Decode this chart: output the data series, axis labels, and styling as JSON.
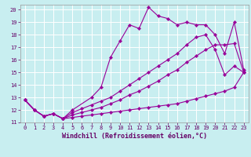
{
  "xlabel": "Windchill (Refroidissement éolien,°C)",
  "bg_color": "#c8eef0",
  "grid_color": "#c0dfe0",
  "line_color": "#990099",
  "xlim": [
    -0.5,
    23.5
  ],
  "ylim": [
    11,
    20.4
  ],
  "xticks": [
    0,
    1,
    2,
    3,
    4,
    5,
    6,
    7,
    8,
    9,
    10,
    11,
    12,
    13,
    14,
    15,
    16,
    17,
    18,
    19,
    20,
    21,
    22,
    23
  ],
  "yticks": [
    11,
    12,
    13,
    14,
    15,
    16,
    17,
    18,
    19,
    20
  ],
  "series": [
    {
      "x": [
        0,
        1,
        2,
        3,
        4,
        5,
        7,
        8,
        9,
        10,
        11,
        12,
        13,
        14,
        15,
        16,
        17,
        18,
        19,
        20,
        21,
        22,
        23
      ],
      "y": [
        12.8,
        12.0,
        11.5,
        11.7,
        11.3,
        12.0,
        13.0,
        13.8,
        16.2,
        17.5,
        18.8,
        18.5,
        20.2,
        19.5,
        19.3,
        18.8,
        19.0,
        18.8,
        18.8,
        18.0,
        16.5,
        19.0,
        15.2
      ]
    },
    {
      "x": [
        0,
        1,
        2,
        3,
        4,
        5,
        6,
        7,
        8,
        9,
        10,
        11,
        12,
        13,
        14,
        15,
        16,
        17,
        18,
        19,
        20,
        21,
        22,
        23
      ],
      "y": [
        12.8,
        12.0,
        11.5,
        11.7,
        11.3,
        11.8,
        12.1,
        12.4,
        12.7,
        13.0,
        13.5,
        14.0,
        14.5,
        15.0,
        15.5,
        16.0,
        16.5,
        17.2,
        17.8,
        18.0,
        16.8,
        14.8,
        15.5,
        15.0
      ]
    },
    {
      "x": [
        0,
        1,
        2,
        3,
        4,
        5,
        6,
        7,
        8,
        9,
        10,
        11,
        12,
        13,
        14,
        15,
        16,
        17,
        18,
        19,
        20,
        21,
        22,
        23
      ],
      "y": [
        12.8,
        12.0,
        11.5,
        11.7,
        11.3,
        11.6,
        11.8,
        12.0,
        12.2,
        12.5,
        12.8,
        13.2,
        13.5,
        13.9,
        14.3,
        14.8,
        15.2,
        15.8,
        16.3,
        16.8,
        17.2,
        17.2,
        17.3,
        15.0
      ]
    },
    {
      "x": [
        0,
        1,
        2,
        3,
        4,
        5,
        6,
        7,
        8,
        9,
        10,
        11,
        12,
        13,
        14,
        15,
        16,
        17,
        18,
        19,
        20,
        21,
        22,
        23
      ],
      "y": [
        12.8,
        12.0,
        11.5,
        11.7,
        11.3,
        11.4,
        11.5,
        11.6,
        11.7,
        11.8,
        11.9,
        12.0,
        12.1,
        12.2,
        12.3,
        12.4,
        12.5,
        12.7,
        12.9,
        13.1,
        13.3,
        13.5,
        13.8,
        15.0
      ]
    }
  ],
  "marker_size": 2.2,
  "line_width": 0.8,
  "tick_fontsize": 5.0,
  "xlabel_fontsize": 6.0
}
